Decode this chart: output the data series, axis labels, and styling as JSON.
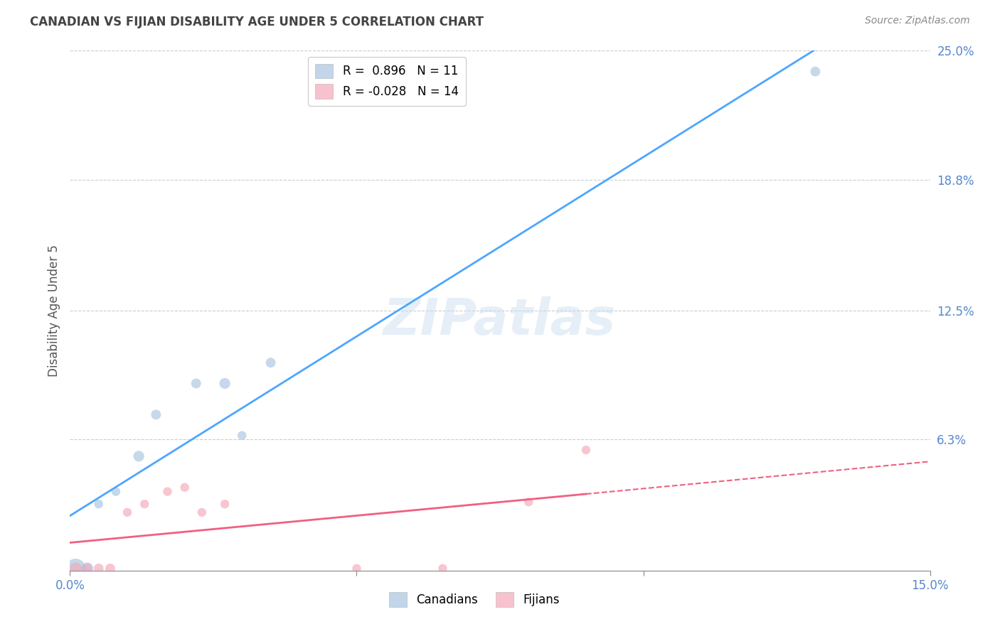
{
  "title": "CANADIAN VS FIJIAN DISABILITY AGE UNDER 5 CORRELATION CHART",
  "source": "Source: ZipAtlas.com",
  "ylabel": "Disability Age Under 5",
  "xlim": [
    0.0,
    0.15
  ],
  "ylim": [
    0.0,
    0.25
  ],
  "yticks": [
    0.0,
    0.063,
    0.125,
    0.188,
    0.25
  ],
  "ytick_labels": [
    "",
    "6.3%",
    "12.5%",
    "18.8%",
    "25.0%"
  ],
  "xticks": [
    0.0,
    0.05,
    0.1,
    0.15
  ],
  "xtick_labels": [
    "0.0%",
    "",
    "",
    "15.0%"
  ],
  "canadian_color": "#a8c4e0",
  "fijian_color": "#f4a8b8",
  "canadian_line_color": "#4da6ff",
  "fijian_line_color": "#f06080",
  "background_color": "#ffffff",
  "grid_color": "#cccccc",
  "title_color": "#444444",
  "axis_tick_color": "#5588cc",
  "watermark_text": "ZIPatlas",
  "legend_R_canadian": "0.896",
  "legend_N_canadian": "11",
  "legend_R_fijian": "-0.028",
  "legend_N_fijian": "14",
  "canadians_x": [
    0.001,
    0.003,
    0.005,
    0.008,
    0.012,
    0.015,
    0.022,
    0.027,
    0.03,
    0.035,
    0.13
  ],
  "canadians_y": [
    0.001,
    0.001,
    0.032,
    0.038,
    0.055,
    0.075,
    0.09,
    0.09,
    0.065,
    0.1,
    0.24
  ],
  "canadians_size": [
    400,
    150,
    80,
    80,
    120,
    100,
    100,
    120,
    80,
    100,
    100
  ],
  "fijians_x": [
    0.001,
    0.003,
    0.005,
    0.007,
    0.01,
    0.013,
    0.017,
    0.02,
    0.023,
    0.027,
    0.05,
    0.065,
    0.08,
    0.09
  ],
  "fijians_y": [
    0.001,
    0.001,
    0.001,
    0.001,
    0.028,
    0.032,
    0.038,
    0.04,
    0.028,
    0.032,
    0.001,
    0.001,
    0.033,
    0.058
  ],
  "fijians_size": [
    150,
    100,
    100,
    100,
    80,
    80,
    80,
    80,
    80,
    80,
    80,
    80,
    80,
    80
  ]
}
